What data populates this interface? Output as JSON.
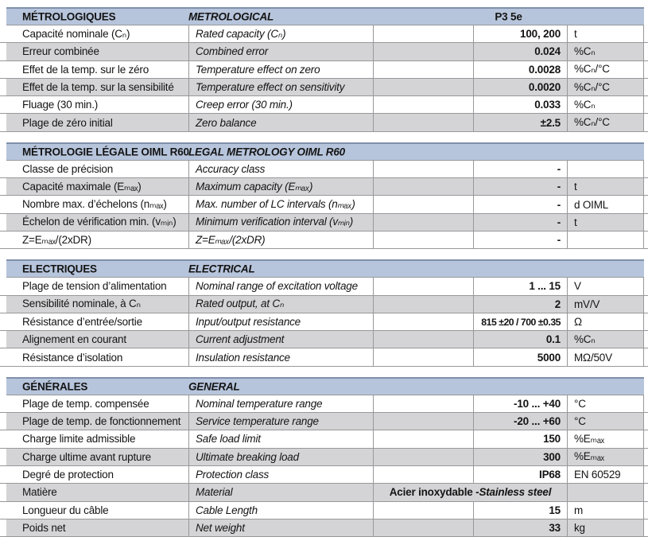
{
  "model": "P3 5e",
  "colors": {
    "header_bg": "#b7c5dc",
    "header_top_rule": "#8090aa",
    "stripe_bg": "#d4d4d6",
    "grid_border": "#98989a",
    "text": "#141414"
  },
  "sections": [
    {
      "title_fr": "MÉTROLOGIQUES",
      "title_en": "METROLOGICAL",
      "rows": [
        {
          "fr": "Capacité nominale (Cₙ)",
          "en": "Rated capacity (Cₙ)",
          "value": "100, 200",
          "unit": "t"
        },
        {
          "fr": "Erreur combinée",
          "en": "Combined error",
          "value": "0.024",
          "unit": "%Cₙ"
        },
        {
          "fr": "Effet de la temp. sur le zéro",
          "en": "Temperature effect on zero",
          "value": "0.0028",
          "unit": "%Cₙ/°C"
        },
        {
          "fr": "Effet de la temp. sur la sensibilité",
          "en": "Temperature effect on sensitivity",
          "value": "0.0020",
          "unit": "%Cₙ/°C"
        },
        {
          "fr": "Fluage (30 min.)",
          "en": "Creep error (30 min.)",
          "value": "0.033",
          "unit": "%Cₙ"
        },
        {
          "fr": "Plage de zéro initial",
          "en": "Zero balance",
          "value": "±2.5",
          "unit": "%Cₙ/°C"
        }
      ]
    },
    {
      "title_fr": "MÉTROLOGIE LÉGALE OIML R60",
      "title_en": "LEGAL METROLOGY OIML R60",
      "rows": [
        {
          "fr": "Classe de précision",
          "en": "Accuracy class",
          "value": "-",
          "unit": ""
        },
        {
          "fr": "Capacité maximale (Eₘₐₓ)",
          "en": "Maximum capacity (Eₘₐₓ)",
          "value": "-",
          "unit": "t"
        },
        {
          "fr": "Nombre max. d’échelons (nₘₐₓ)",
          "en": "Max. number of LC intervals (nₘₐₓ)",
          "value": "-",
          "unit": "d OIML"
        },
        {
          "fr": "Échelon de vérification min. (vₘᵢₙ)",
          "en": "Minimum verification interval (vₘᵢₙ)",
          "value": "-",
          "unit": "t"
        },
        {
          "fr": "Z=Eₘₐₓ/(2xDR)",
          "en": "Z=Eₘₐₓ/(2xDR)",
          "value": "-",
          "unit": ""
        }
      ]
    },
    {
      "title_fr": "ELECTRIQUES",
      "title_en": "ELECTRICAL",
      "rows": [
        {
          "fr": "Plage de tension d’alimentation",
          "en": "Nominal range of excitation voltage",
          "value": "1 ... 15",
          "unit": "V"
        },
        {
          "fr": "Sensibilité nominale, à Cₙ",
          "en": "Rated output, at Cₙ",
          "value": "2",
          "unit": "mV/V"
        },
        {
          "fr": "Résistance d’entrée/sortie",
          "en": "Input/output resistance",
          "value": "815 ±20 / 700 ±0.35",
          "unit": "Ω"
        },
        {
          "fr": "Alignement en courant",
          "en": "Current adjustment",
          "value": "0.1",
          "unit": "%Cₙ"
        },
        {
          "fr": "Résistance d’isolation",
          "en": "Insulation resistance",
          "value": "5000",
          "unit": "MΩ/50V"
        }
      ]
    },
    {
      "title_fr": "GÉNÉRALES",
      "title_en": "GENERAL",
      "rows": [
        {
          "fr": "Plage de temp. compensée",
          "en": "Nominal temperature range",
          "value": "-10 ... +40",
          "unit": "°C"
        },
        {
          "fr": "Plage de temp. de fonctionnement",
          "en": "Service temperature range",
          "value": "-20 ... +60",
          "unit": "°C"
        },
        {
          "fr": "Charge limite admissible",
          "en": "Safe load limit",
          "value": "150",
          "unit": "%Eₘₐₓ"
        },
        {
          "fr": "Charge ultime avant rupture",
          "en": "Ultimate breaking load",
          "value": "300",
          "unit": "%Eₘₐₓ"
        },
        {
          "fr": "Degré de protection",
          "en": "Protection class",
          "value": "IP68",
          "unit": "EN 60529"
        },
        {
          "fr": "Matière",
          "en": "Material",
          "value_fr": "Acier inoxydable - ",
          "value_en": "Stainless steel",
          "unit": ""
        },
        {
          "fr": "Longueur du câble",
          "en": "Cable Length",
          "value": "15",
          "unit": "m"
        },
        {
          "fr": "Poids net",
          "en": "Net weight",
          "value": "33",
          "unit": "kg"
        }
      ]
    }
  ]
}
